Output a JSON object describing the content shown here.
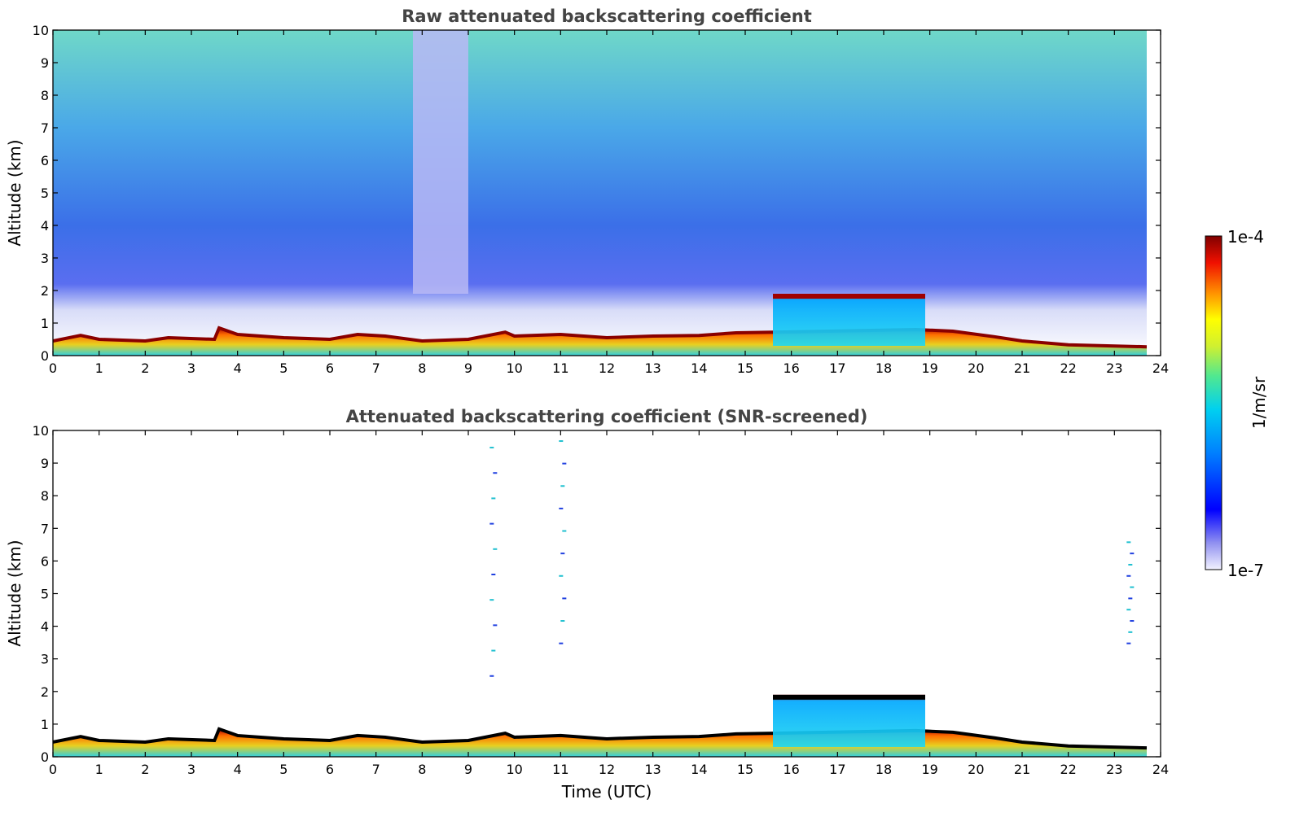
{
  "chart_data": [
    {
      "type": "heatmap",
      "title": "Raw attenuated backscattering coefficient",
      "xlabel": "",
      "ylabel": "Altitude (km)",
      "xlim": [
        0,
        24
      ],
      "ylim": [
        0,
        10
      ],
      "x_ticks": [
        "0",
        "1",
        "2",
        "3",
        "4",
        "5",
        "6",
        "7",
        "8",
        "9",
        "10",
        "11",
        "12",
        "13",
        "14",
        "15",
        "16",
        "17",
        "18",
        "19",
        "20",
        "21",
        "22",
        "23",
        "24"
      ],
      "y_ticks": [
        "0",
        "1",
        "2",
        "3",
        "4",
        "5",
        "6",
        "7",
        "8",
        "9",
        "10"
      ],
      "data_extent_hours": [
        0,
        23.7
      ],
      "boundary_layer_top_km": [
        [
          0,
          0.45
        ],
        [
          0.6,
          0.62
        ],
        [
          1,
          0.5
        ],
        [
          2,
          0.45
        ],
        [
          2.5,
          0.55
        ],
        [
          3.5,
          0.5
        ],
        [
          3.6,
          0.85
        ],
        [
          4,
          0.65
        ],
        [
          5,
          0.55
        ],
        [
          6,
          0.5
        ],
        [
          6.6,
          0.65
        ],
        [
          7.2,
          0.6
        ],
        [
          8,
          0.45
        ],
        [
          9,
          0.5
        ],
        [
          9.8,
          0.72
        ],
        [
          10,
          0.6
        ],
        [
          11,
          0.65
        ],
        [
          12,
          0.55
        ],
        [
          13,
          0.6
        ],
        [
          14,
          0.62
        ],
        [
          14.8,
          0.7
        ],
        [
          15.6,
          0.72
        ],
        [
          18.7,
          0.8
        ],
        [
          19.5,
          0.75
        ],
        [
          20.4,
          0.58
        ],
        [
          21,
          0.45
        ],
        [
          22,
          0.33
        ],
        [
          23.7,
          0.27
        ]
      ],
      "cloud_layer": {
        "x_range": [
          15.6,
          18.9
        ],
        "top_km": 1.9,
        "base_km": 1.75
      },
      "signal_gap_hours": [
        7.8,
        9.0
      ],
      "colorscale": [
        "#e8e8f8",
        "#9090f0",
        "#0000ff",
        "#0070ff",
        "#00c0ff",
        "#30e0b0",
        "#90f060",
        "#ffff00",
        "#ff9000",
        "#ff2000",
        "#800000"
      ]
    },
    {
      "type": "heatmap",
      "title": "Attenuated backscattering coefficient (SNR-screened)",
      "xlabel": "Time (UTC)",
      "ylabel": "Altitude (km)",
      "xlim": [
        0,
        24
      ],
      "ylim": [
        0,
        10
      ],
      "x_ticks": [
        "0",
        "1",
        "2",
        "3",
        "4",
        "5",
        "6",
        "7",
        "8",
        "9",
        "10",
        "11",
        "12",
        "13",
        "14",
        "15",
        "16",
        "17",
        "18",
        "19",
        "20",
        "21",
        "22",
        "23",
        "24"
      ],
      "y_ticks": [
        "0",
        "1",
        "2",
        "3",
        "4",
        "5",
        "6",
        "7",
        "8",
        "9",
        "10"
      ],
      "data_extent_hours": [
        0,
        23.7
      ],
      "boundary_layer_top_km": [
        [
          0,
          0.45
        ],
        [
          0.6,
          0.62
        ],
        [
          1,
          0.5
        ],
        [
          2,
          0.45
        ],
        [
          2.5,
          0.55
        ],
        [
          3.5,
          0.5
        ],
        [
          3.6,
          0.85
        ],
        [
          4,
          0.65
        ],
        [
          5,
          0.55
        ],
        [
          6,
          0.5
        ],
        [
          6.6,
          0.65
        ],
        [
          7.2,
          0.6
        ],
        [
          8,
          0.45
        ],
        [
          9,
          0.5
        ],
        [
          9.8,
          0.72
        ],
        [
          10,
          0.6
        ],
        [
          11,
          0.65
        ],
        [
          12,
          0.55
        ],
        [
          13,
          0.6
        ],
        [
          14,
          0.62
        ],
        [
          14.8,
          0.7
        ],
        [
          15.6,
          0.72
        ],
        [
          18.7,
          0.8
        ],
        [
          19.5,
          0.75
        ],
        [
          20.4,
          0.58
        ],
        [
          21,
          0.45
        ],
        [
          22,
          0.33
        ],
        [
          23.7,
          0.27
        ]
      ],
      "cloud_layer": {
        "x_range": [
          15.6,
          18.9
        ],
        "top_km": 1.9,
        "base_km": 1.75
      },
      "sparse_echoes": [
        {
          "x": 9.5,
          "y_range": [
            2.5,
            9.5
          ]
        },
        {
          "x": 11.0,
          "y_range": [
            3.5,
            9.7
          ]
        },
        {
          "x": 23.3,
          "y_range": [
            3.5,
            6.6
          ]
        }
      ]
    }
  ],
  "colorbar": {
    "label": "1/m/sr",
    "max_label": "1e-4",
    "min_label": "1e-7",
    "scale": "log"
  }
}
